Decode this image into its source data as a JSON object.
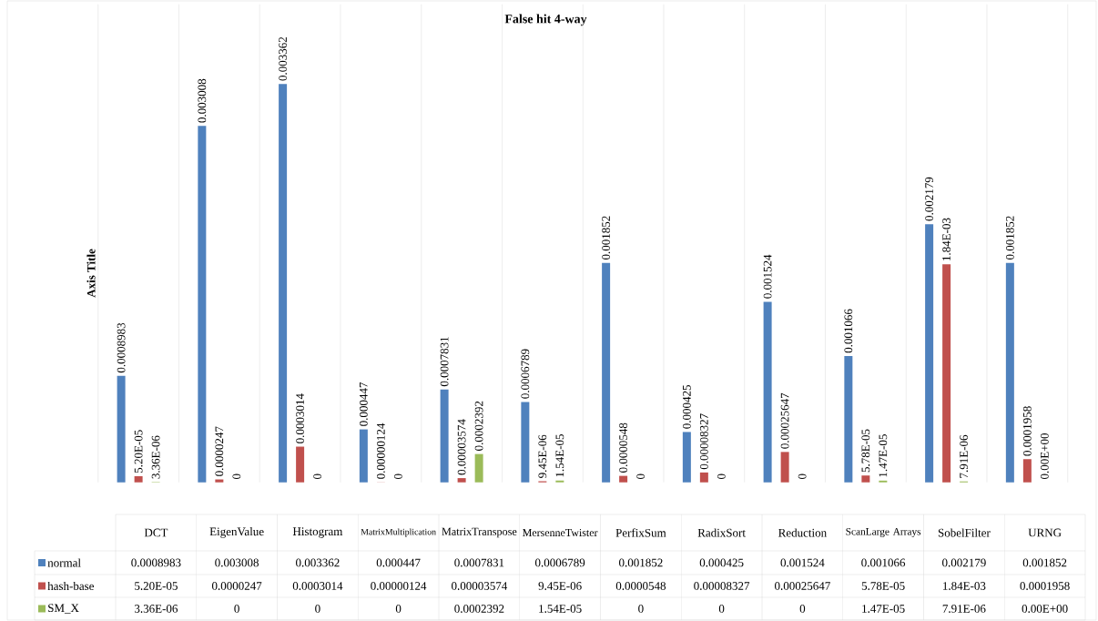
{
  "chart_data": {
    "type": "bar",
    "title": "False hit 4-way",
    "ylabel": "Axis Title",
    "grid": "x",
    "legend": "bottom",
    "categories": [
      "DCT",
      "EigenValue",
      "Histogram",
      "MatrixMultiplication",
      "MatrixTranspose",
      "MersenneTwister",
      "PerfixSum",
      "RadixSort",
      "Reduction",
      "ScanLarge Arrays",
      "SobelFilter",
      "URNG"
    ],
    "series": [
      {
        "name": "normal",
        "color": "#4f81bd",
        "values": [
          0.0008983,
          0.003008,
          0.003362,
          0.000447,
          0.0007831,
          0.0006789,
          0.001852,
          0.000425,
          0.001524,
          0.001066,
          0.002179,
          0.001852
        ],
        "value_labels": [
          "0.0008983",
          "0.003008",
          "0.003362",
          "0.000447",
          "0.0007831",
          "0.0006789",
          "0.001852",
          "0.000425",
          "0.001524",
          "0.001066",
          "0.002179",
          "0.001852"
        ]
      },
      {
        "name": "hash-base",
        "color": "#c0504d",
        "values": [
          5.2e-05,
          2.47e-05,
          0.0003014,
          1.24e-06,
          3.574e-05,
          9.45e-06,
          5.48e-05,
          8.327e-05,
          0.00025647,
          5.78e-05,
          0.00184,
          0.0001958
        ],
        "value_labels": [
          "5.20E-05",
          "0.0000247",
          "0.0003014",
          "0.00000124",
          "0.00003574",
          "9.45E-06",
          "0.0000548",
          "0.00008327",
          "0.00025647",
          "5.78E-05",
          "1.84E-03",
          "0.0001958"
        ]
      },
      {
        "name": "SM_X",
        "color": "#9bbb59",
        "values": [
          3.36e-06,
          0,
          0,
          0,
          0.0002392,
          1.54e-05,
          0,
          0,
          0,
          1.47e-05,
          7.91e-06,
          0
        ],
        "value_labels": [
          "3.36E-06",
          "0",
          "0",
          "0",
          "0.0002392",
          "1.54E-05",
          "0",
          "0",
          "0",
          "1.47E-05",
          "7.91E-06",
          "0.00E+00"
        ]
      }
    ]
  }
}
